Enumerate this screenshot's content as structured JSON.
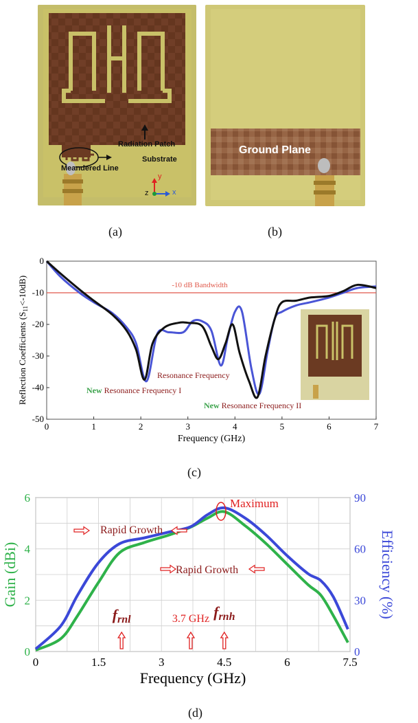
{
  "photos": {
    "a": {
      "caption": "(a)",
      "labels": {
        "radiation_patch": "Radiation Patch",
        "substrate": "Substrate",
        "meandered_line": "Meandered Line",
        "axis_y": "y",
        "axis_x": "x",
        "axis_z": "z"
      }
    },
    "b": {
      "caption": "(b)",
      "labels": {
        "ground_plane": "Ground Plane"
      }
    }
  },
  "chart_c": {
    "caption": "(c)",
    "xlabel": "Frequency (GHz)",
    "ylabel_main": "Reflection Coefficients (S",
    "ylabel_sub": "11",
    "ylabel_end": "<-10dB)",
    "bandwidth_label": "-10 dB Bandwidth",
    "annotations": {
      "resonance": "Resonance Frequency",
      "new1_prefix": "New",
      "new1_rest": " Resonance Frequency I",
      "new2_prefix": "New",
      "new2_rest": " Resonance Frequency II"
    },
    "x_ticks": [
      "0",
      "1",
      "2",
      "3",
      "4",
      "5",
      "6",
      "7"
    ],
    "y_ticks": [
      "0",
      "-10",
      "-20",
      "-30",
      "-40",
      "-50"
    ],
    "colors": {
      "black": "#111111",
      "blue": "#4a55d6",
      "line": "#e0584a",
      "annot": "#8b1a1a",
      "new": "#3aa24a"
    }
  },
  "chart_d": {
    "caption": "(d)",
    "xlabel": "Frequency (GHz)",
    "ylabel_left": "Gain (dBi)",
    "ylabel_right": "Efficiency (%)",
    "x_ticks": [
      "0",
      "1.5",
      "3",
      "4.5",
      "6",
      "7.5"
    ],
    "y_left_ticks": [
      "0",
      "2",
      "4",
      "6"
    ],
    "y_right_ticks": [
      "0",
      "30",
      "60",
      "90"
    ],
    "annotations": {
      "maximum": "Maximum",
      "rapid_growth_1": "Rapid Growth",
      "rapid_growth_2": "Rapid Growth",
      "frnl": "f",
      "frnl_sub": "rnl",
      "mid": "3.7 GHz",
      "frnh": "f",
      "frnh_sub": "rnh"
    },
    "colors": {
      "gain": "#2fb24a",
      "eff": "#3b48d8",
      "annot": "#8b1a1a",
      "red": "#e02020"
    }
  },
  "chart_data": [
    {
      "type": "line",
      "title": "",
      "xlabel": "Frequency (GHz)",
      "ylabel": "Reflection Coefficients (S11<-10dB)",
      "xlim": [
        0,
        7
      ],
      "ylim": [
        -50,
        0
      ],
      "reference_line": {
        "y": -10,
        "label": "-10 dB Bandwidth"
      },
      "series": [
        {
          "color": "black",
          "x": [
            0,
            0.3,
            0.7,
            1.0,
            1.4,
            1.7,
            1.9,
            2.08,
            2.25,
            2.5,
            2.8,
            3.0,
            3.3,
            3.5,
            3.65,
            3.8,
            3.95,
            4.1,
            4.3,
            4.48,
            4.65,
            4.85,
            5.0,
            5.3,
            5.6,
            6.0,
            6.3,
            6.6,
            7.0
          ],
          "y": [
            0,
            -4,
            -9,
            -12.5,
            -17,
            -22,
            -28,
            -37.5,
            -26,
            -21,
            -19.5,
            -19.5,
            -20.5,
            -27,
            -31,
            -26,
            -20,
            -29,
            -38,
            -43,
            -30,
            -18,
            -13,
            -12.5,
            -11.5,
            -11,
            -9.5,
            -7.5,
            -8.5
          ]
        },
        {
          "color": "blue",
          "x": [
            0,
            0.3,
            0.7,
            1.0,
            1.4,
            1.7,
            1.9,
            2.12,
            2.35,
            2.6,
            2.9,
            3.1,
            3.3,
            3.5,
            3.7,
            3.85,
            4.0,
            4.15,
            4.35,
            4.52,
            4.7,
            4.85,
            5.0,
            5.3,
            5.6,
            6.0,
            6.3,
            6.6,
            7.0
          ],
          "y": [
            0,
            -5,
            -10,
            -13,
            -16.5,
            -21,
            -26,
            -38,
            -23,
            -22.5,
            -22.5,
            -19,
            -19,
            -22,
            -33,
            -24,
            -16,
            -16,
            -34,
            -42,
            -28,
            -18,
            -16,
            -14,
            -13,
            -11.5,
            -10,
            -8.5,
            -8
          ]
        }
      ]
    },
    {
      "type": "line",
      "title": "",
      "xlabel": "Frequency (GHz)",
      "xlim": [
        0,
        7.5
      ],
      "y_left": {
        "label": "Gain (dBi)",
        "lim": [
          0,
          6
        ]
      },
      "y_right": {
        "label": "Efficiency (%)",
        "lim": [
          0,
          90
        ]
      },
      "series": [
        {
          "name": "Gain (dBi)",
          "axis": "left",
          "x": [
            0,
            0.6,
            1.0,
            1.5,
            2.0,
            2.6,
            3.2,
            3.7,
            4.1,
            4.5,
            5.0,
            5.5,
            6.0,
            6.5,
            6.8,
            7.1,
            7.45
          ],
          "y": [
            0.05,
            0.5,
            1.4,
            2.7,
            3.85,
            4.25,
            4.55,
            4.85,
            5.2,
            5.45,
            4.9,
            4.2,
            3.4,
            2.6,
            2.2,
            1.4,
            0.35
          ]
        },
        {
          "name": "Efficiency (%)",
          "axis": "right",
          "x": [
            0,
            0.6,
            1.0,
            1.5,
            2.0,
            2.6,
            3.2,
            3.7,
            4.1,
            4.5,
            5.0,
            5.5,
            6.0,
            6.5,
            6.8,
            7.1,
            7.45
          ],
          "y": [
            1.5,
            15,
            33,
            52,
            63,
            66.5,
            70,
            73,
            80,
            84,
            78,
            68,
            56,
            45.5,
            41.5,
            32,
            13
          ]
        }
      ]
    }
  ]
}
